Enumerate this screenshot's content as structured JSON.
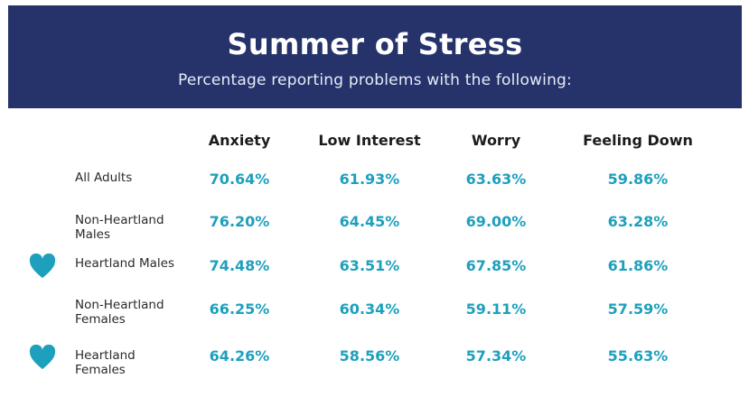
{
  "header": {
    "title": "Summer of Stress",
    "subtitle": "Percentage reporting problems with the following:"
  },
  "colors": {
    "banner": "#26336b",
    "values": "#1ea0bd",
    "heart": "#1ea0bd"
  },
  "chart_data": {
    "type": "table",
    "columns": [
      "Anxiety",
      "Low Interest",
      "Worry",
      "Feeling Down"
    ],
    "rows": [
      {
        "label_lines": [
          "All Adults"
        ],
        "heart_icon": false,
        "values": [
          "70.64%",
          "61.93%",
          "63.63%",
          "59.86%"
        ]
      },
      {
        "label_lines": [
          "Non-Heartland",
          "Males"
        ],
        "heart_icon": false,
        "values": [
          "76.20%",
          "64.45%",
          "69.00%",
          "63.28%"
        ]
      },
      {
        "label_lines": [
          "Heartland Males"
        ],
        "heart_icon": true,
        "values": [
          "74.48%",
          "63.51%",
          "67.85%",
          "61.86%"
        ]
      },
      {
        "label_lines": [
          "Non-Heartland",
          "Females"
        ],
        "heart_icon": false,
        "values": [
          "66.25%",
          "60.34%",
          "59.11%",
          "57.59%"
        ]
      },
      {
        "label_lines": [
          "Heartland",
          "Females"
        ],
        "heart_icon": true,
        "values": [
          "64.26%",
          "58.56%",
          "57.34%",
          "55.63%"
        ]
      }
    ]
  }
}
